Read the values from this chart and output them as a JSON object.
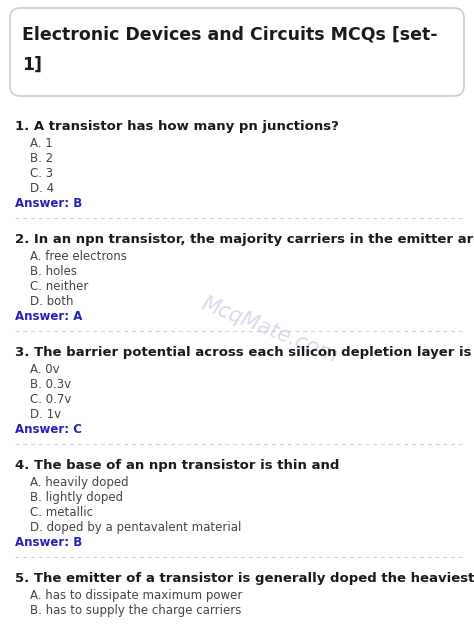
{
  "background_color": "#ffffff",
  "title_box_edge": "#cccccc",
  "question_color": "#1a1a1a",
  "option_color": "#444444",
  "answer_color": "#2222bb",
  "separator_color": "#cccccc",
  "watermark_color": "#b0b8d8",
  "title_line1": "Electronic Devices and Circuits MCQs [set-",
  "title_line2": "1]",
  "questions": [
    {
      "num": "1.",
      "text": "A transistor has how many pn junctions?",
      "options": [
        "A. 1",
        "B. 2",
        "C. 3",
        "D. 4"
      ],
      "answer": "Answer: B"
    },
    {
      "num": "2.",
      "text": "In an npn transistor, the majority carriers in the emitter are",
      "options": [
        "A. free electrons",
        "B. holes",
        "C. neither",
        "D. both"
      ],
      "answer": "Answer: A"
    },
    {
      "num": "3.",
      "text": "The barrier potential across each silicon depletion layer is",
      "options": [
        "A. 0v",
        "B. 0.3v",
        "C. 0.7v",
        "D. 1v"
      ],
      "answer": "Answer: C"
    },
    {
      "num": "4.",
      "text": "The base of an npn transistor is thin and",
      "options": [
        "A. heavily doped",
        "B. lightly doped",
        "C. metallic",
        "D. doped by a pentavalent material"
      ],
      "answer": "Answer: B"
    },
    {
      "num": "5.",
      "text": "The emitter of a transistor is generally doped the heaviest because it",
      "options": [
        "A. has to dissipate maximum power",
        "B. has to supply the charge carriers"
      ],
      "answer": ""
    }
  ]
}
